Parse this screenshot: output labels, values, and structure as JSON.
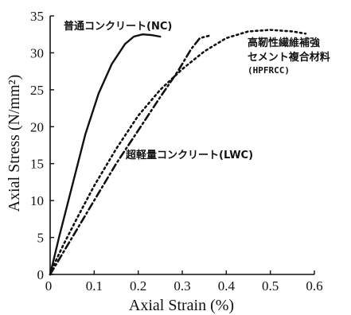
{
  "chart_data": {
    "type": "line",
    "title": "",
    "xlabel": "Axial Strain (%)",
    "ylabel": "Axial Stress (N/mm²)",
    "xlim": [
      0,
      0.6
    ],
    "ylim": [
      0,
      35
    ],
    "xticks": [
      "0",
      "0.1",
      "0.2",
      "0.3",
      "0.4",
      "0.5",
      "0.6"
    ],
    "yticks": [
      "0",
      "5",
      "10",
      "15",
      "20",
      "25",
      "30",
      "35"
    ],
    "grid": false,
    "legend": "none",
    "series": [
      {
        "name": "普通コンクリート(NC)",
        "style": "solid",
        "x": [
          0,
          0.02,
          0.05,
          0.08,
          0.11,
          0.14,
          0.17,
          0.19,
          0.21,
          0.23,
          0.25
        ],
        "y": [
          0,
          5,
          12,
          19,
          24.5,
          28.5,
          31.2,
          32.2,
          32.5,
          32.4,
          32.2
        ]
      },
      {
        "name": "高靭性繊維補強セメント複合材料(HPFRCC)",
        "style": "dotted",
        "x": [
          0,
          0.01,
          0.03,
          0.06,
          0.1,
          0.15,
          0.2,
          0.25,
          0.3,
          0.35,
          0.4,
          0.45,
          0.5,
          0.55,
          0.58
        ],
        "y": [
          0,
          1.5,
          4,
          7.5,
          12,
          17,
          21.5,
          25,
          27.8,
          30.2,
          32,
          32.9,
          33.1,
          32.9,
          32.6
        ]
      },
      {
        "name": "超軽量コンクリート(LWC)",
        "style": "dashdot",
        "x": [
          0,
          0.01,
          0.03,
          0.06,
          0.1,
          0.15,
          0.2,
          0.25,
          0.29,
          0.32,
          0.34,
          0.36
        ],
        "y": [
          0,
          1,
          3,
          6,
          10,
          15,
          19.5,
          24,
          27.5,
          30.5,
          32,
          32.3
        ]
      }
    ],
    "annotations": {
      "nc": "普通コンクリート(NC)",
      "hpfrcc_line1": "高靭性繊維補強",
      "hpfrcc_line2": "セメント複合材料",
      "hpfrcc_line3": "(HPFRCC)",
      "lwc": "超軽量コンクリート(LWC)"
    }
  }
}
